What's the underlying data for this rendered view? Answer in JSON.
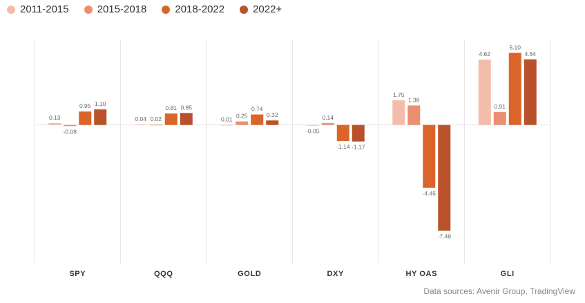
{
  "chart_data": {
    "type": "bar",
    "categories": [
      "SPY",
      "QQQ",
      "GOLD",
      "DXY",
      "HY OAS",
      "GLI"
    ],
    "series": [
      {
        "name": "2011-2015",
        "color": "#f4bcab",
        "values": [
          0.13,
          0.04,
          0.01,
          -0.05,
          1.75,
          4.62
        ]
      },
      {
        "name": "2015-2018",
        "color": "#eb8f72",
        "values": [
          -0.08,
          0.02,
          0.25,
          0.14,
          1.38,
          0.91
        ]
      },
      {
        "name": "2018-2022",
        "color": "#db6428",
        "values": [
          0.95,
          0.81,
          0.74,
          -1.14,
          -4.45,
          5.1
        ]
      },
      {
        "name": "2022+",
        "color": "#b9522a",
        "values": [
          1.1,
          0.85,
          0.32,
          -1.17,
          -7.48,
          4.64
        ]
      }
    ],
    "value_labels": [
      [
        "0.13",
        "0.04",
        "0.01",
        "-0.05",
        "1.75",
        "4.62"
      ],
      [
        "-0.08",
        "0.02",
        "0.25",
        "0.14",
        "1.38",
        "0.91"
      ],
      [
        "0.95",
        "0.81",
        "0.74",
        "-1.14",
        "-4.45",
        "5.10"
      ],
      [
        "1.10",
        "0.85",
        "0.32",
        "-1.17",
        "-7.48",
        "4.64"
      ]
    ],
    "ylim": [
      -9.8,
      6.0
    ],
    "grid": false,
    "legend_position": "top-left"
  },
  "source_text": "Data sources: Avenir Group, TradingView"
}
